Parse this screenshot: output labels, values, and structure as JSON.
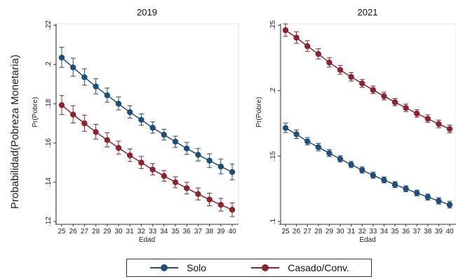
{
  "figure": {
    "ylabel": "Probabilidad(Pobreza Monetaria)"
  },
  "colors": {
    "solo": "#1f4e79",
    "casado": "#8b2430"
  },
  "legend": {
    "items": [
      {
        "label": "Solo",
        "color": "#1f4e79"
      },
      {
        "label": "Casado/Conv.",
        "color": "#8b2430"
      }
    ]
  },
  "chart_data": [
    {
      "type": "line",
      "title": "2019",
      "xlabel": "Edad",
      "ylabel": "Pr(Pobre)",
      "ylim": [
        0.12,
        0.22
      ],
      "yticks": [
        ".12",
        ".14",
        ".16",
        ".18",
        ".2",
        ".22"
      ],
      "ytick_values": [
        0.12,
        0.14,
        0.16,
        0.18,
        0.2,
        0.22
      ],
      "x": [
        25,
        26,
        27,
        28,
        29,
        30,
        31,
        32,
        33,
        34,
        35,
        36,
        37,
        38,
        39,
        40
      ],
      "series": [
        {
          "name": "Solo",
          "values": [
            0.2035,
            0.1985,
            0.1935,
            0.1888,
            0.1843,
            0.18,
            0.1757,
            0.1718,
            0.1678,
            0.1642,
            0.1607,
            0.1572,
            0.154,
            0.151,
            0.148,
            0.1452
          ],
          "lower": [
            0.1985,
            0.194,
            0.1895,
            0.185,
            0.1808,
            0.1768,
            0.1727,
            0.169,
            0.165,
            0.1615,
            0.1578,
            0.1542,
            0.1508,
            0.1475,
            0.1443,
            0.1412
          ],
          "upper": [
            0.2088,
            0.2032,
            0.1978,
            0.1928,
            0.188,
            0.1835,
            0.179,
            0.1748,
            0.1708,
            0.167,
            0.1635,
            0.1603,
            0.1572,
            0.1545,
            0.1518,
            0.1493
          ]
        },
        {
          "name": "Casado/Conv.",
          "values": [
            0.1793,
            0.1745,
            0.17,
            0.1656,
            0.1615,
            0.1575,
            0.1537,
            0.15,
            0.1465,
            0.1432,
            0.14,
            0.137,
            0.134,
            0.1312,
            0.1285,
            0.126
          ],
          "lower": [
            0.1745,
            0.1702,
            0.166,
            0.162,
            0.158,
            0.1543,
            0.1506,
            0.147,
            0.1437,
            0.1405,
            0.1372,
            0.134,
            0.131,
            0.128,
            0.1253,
            0.1225
          ],
          "upper": [
            0.1842,
            0.179,
            0.1742,
            0.1695,
            0.1652,
            0.161,
            0.157,
            0.1532,
            0.1495,
            0.146,
            0.1428,
            0.14,
            0.1371,
            0.1344,
            0.1318,
            0.1295
          ]
        }
      ]
    },
    {
      "type": "line",
      "title": "2021",
      "xlabel": "Edad",
      "ylabel": "Pr(Pobre)",
      "ylim": [
        0.1,
        0.25
      ],
      "yticks": [
        ".1",
        ".15",
        ".2",
        ".25"
      ],
      "ytick_values": [
        0.1,
        0.15,
        0.2,
        0.25
      ],
      "x": [
        25,
        26,
        27,
        28,
        29,
        30,
        31,
        32,
        33,
        34,
        35,
        36,
        37,
        38,
        39,
        40
      ],
      "series": [
        {
          "name": "Solo",
          "values": [
            0.1715,
            0.1667,
            0.1612,
            0.1568,
            0.1522,
            0.1478,
            0.1435,
            0.1393,
            0.1353,
            0.1317,
            0.1282,
            0.125,
            0.1218,
            0.1187,
            0.1157,
            0.1128
          ],
          "lower": [
            0.168,
            0.1635,
            0.1585,
            0.154,
            0.1497,
            0.1455,
            0.1412,
            0.137,
            0.1331,
            0.1295,
            0.126,
            0.1228,
            0.1196,
            0.1164,
            0.1133,
            0.1103
          ],
          "upper": [
            0.1752,
            0.17,
            0.1642,
            0.1597,
            0.155,
            0.1503,
            0.146,
            0.1418,
            0.1377,
            0.134,
            0.1305,
            0.1273,
            0.124,
            0.121,
            0.1182,
            0.1155
          ]
        },
        {
          "name": "Casado/Conv.",
          "values": [
            0.2462,
            0.2405,
            0.234,
            0.228,
            0.2215,
            0.2158,
            0.2105,
            0.2055,
            0.2005,
            0.1958,
            0.1912,
            0.1868,
            0.1825,
            0.1785,
            0.1745,
            0.1707
          ],
          "lower": [
            0.2415,
            0.2362,
            0.23,
            0.2242,
            0.218,
            0.2125,
            0.2073,
            0.2025,
            0.1977,
            0.193,
            0.1885,
            0.184,
            0.1797,
            0.1757,
            0.1717,
            0.1678
          ],
          "upper": [
            0.251,
            0.245,
            0.2382,
            0.232,
            0.2252,
            0.2193,
            0.2138,
            0.2086,
            0.2035,
            0.1987,
            0.194,
            0.1897,
            0.1855,
            0.1815,
            0.1775,
            0.1737
          ]
        }
      ]
    }
  ]
}
